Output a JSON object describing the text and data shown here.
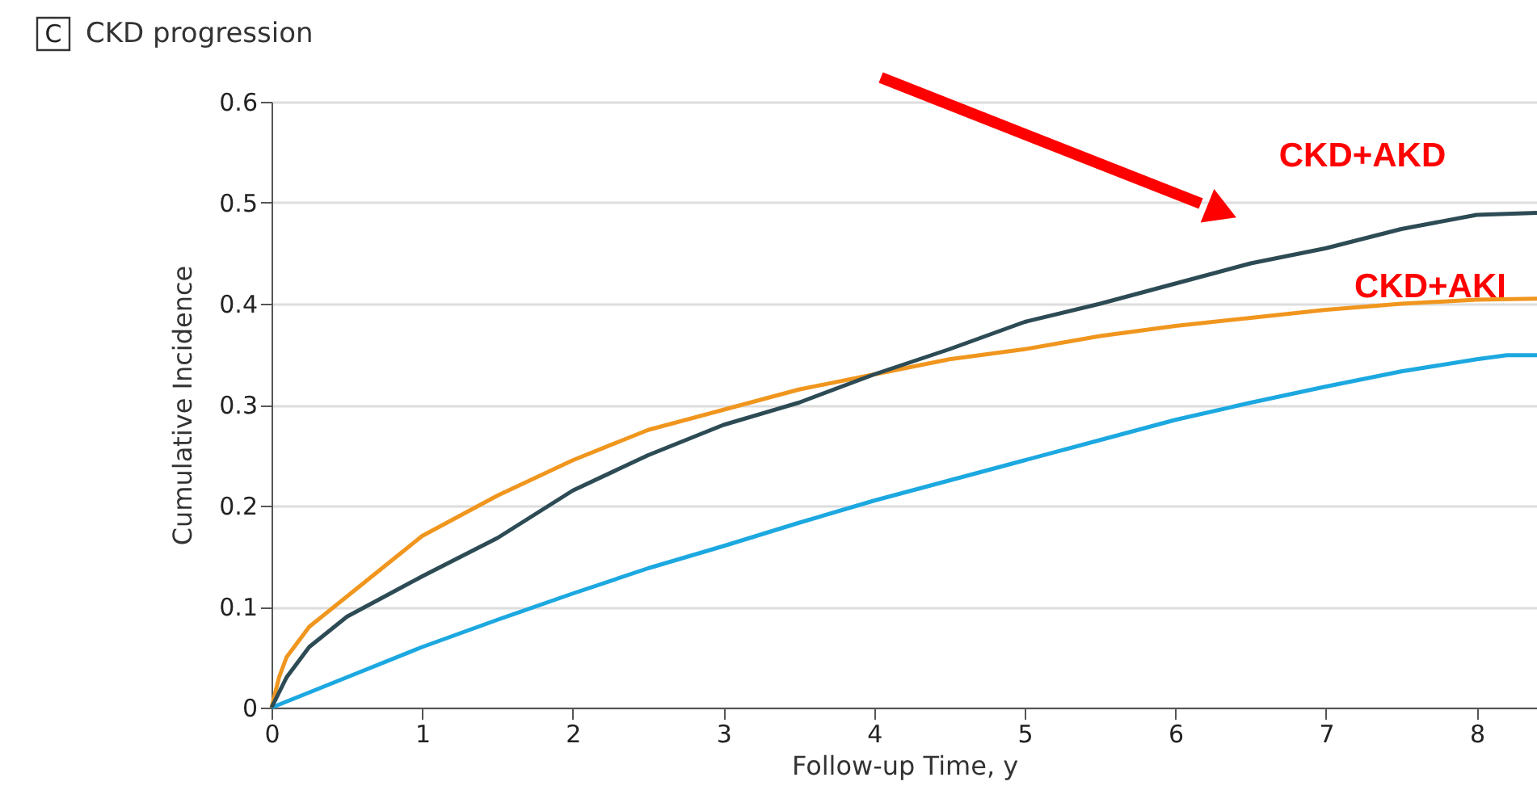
{
  "chart_data": {
    "type": "line",
    "title": "CKD progression",
    "xlabel": "Follow-up Time, y",
    "ylabel": "Cumulative Incidence",
    "annotations": [
      "C",
      "CKD+AKD",
      "CKD+AKI"
    ],
    "series": [
      {
        "color": "#1ca8e0",
        "x": [
          0,
          0.5,
          1,
          1.5,
          2,
          2.5,
          3,
          3.5,
          4,
          4.5,
          5,
          5.5,
          6,
          6.5,
          7,
          7.5,
          8,
          8.2,
          8.4
        ],
        "values": [
          0,
          0.03,
          0.06,
          0.087,
          0.113,
          0.138,
          0.16,
          0.183,
          0.205,
          0.225,
          0.245,
          0.265,
          0.285,
          0.302,
          0.318,
          0.333,
          0.345,
          0.349,
          0.349
        ]
      },
      {
        "color": "#f0961e",
        "x": [
          0,
          0.05,
          0.1,
          0.25,
          0.5,
          0.75,
          1,
          1.25,
          1.5,
          2,
          2.5,
          3,
          3.5,
          4,
          4.5,
          5,
          5.5,
          6,
          6.5,
          7,
          7.5,
          8,
          8.4
        ],
        "values": [
          0,
          0.03,
          0.05,
          0.08,
          0.11,
          0.14,
          0.17,
          0.19,
          0.21,
          0.245,
          0.275,
          0.295,
          0.315,
          0.33,
          0.345,
          0.355,
          0.368,
          0.378,
          0.386,
          0.394,
          0.4,
          0.404,
          0.405
        ]
      },
      {
        "color": "#2d4b55",
        "x": [
          0,
          0.1,
          0.25,
          0.5,
          0.75,
          1,
          1.5,
          2,
          2.5,
          3,
          3.5,
          4,
          4.5,
          5,
          5.5,
          6,
          6.5,
          7,
          7.5,
          8,
          8.4
        ],
        "values": [
          0,
          0.03,
          0.06,
          0.09,
          0.11,
          0.13,
          0.168,
          0.215,
          0.25,
          0.28,
          0.302,
          0.33,
          0.355,
          0.382,
          0.4,
          0.42,
          0.44,
          0.455,
          0.474,
          0.488,
          0.49
        ]
      }
    ],
    "xlim": [
      0,
      8.4
    ],
    "xticks": [
      0,
      1,
      2,
      3,
      4,
      5,
      6,
      7,
      8
    ],
    "ylim": [
      0,
      0.6
    ],
    "yticks": [
      0,
      0.1,
      0.2,
      0.3,
      0.4,
      0.5,
      0.6
    ],
    "grid": "y",
    "legend": false,
    "marker": "none",
    "line_style": "solid"
  }
}
